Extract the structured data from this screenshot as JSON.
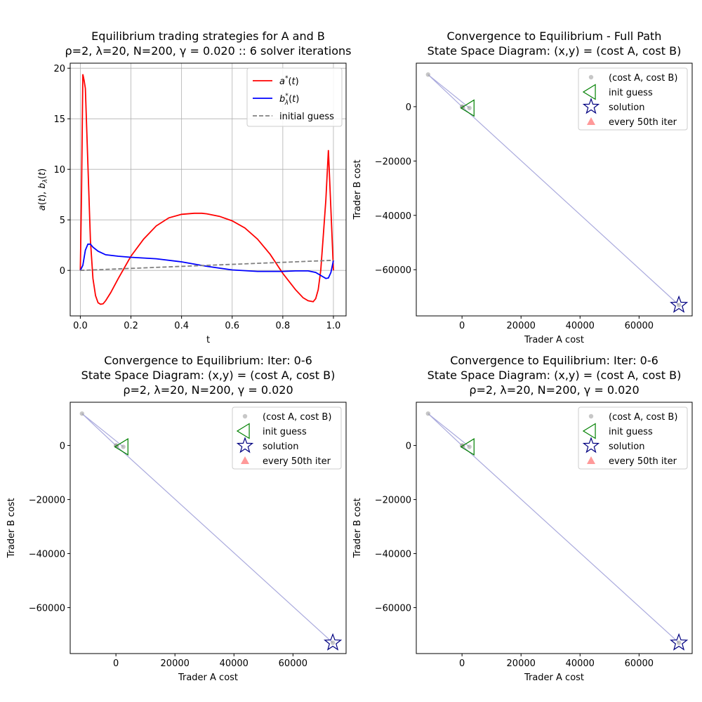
{
  "chart_data": [
    {
      "type": "line",
      "title_lines": [
        "Equilibrium trading strategies for A and B",
        "ρ=2, λ=20, N=200, γ = 0.020 :: 6 solver iterations"
      ],
      "xlabel": "t",
      "ylabel": "a(t), b_λ(t)",
      "xlim": [
        -0.04,
        1.05
      ],
      "ylim": [
        -4.5,
        20.5
      ],
      "xticks": [
        0.0,
        0.2,
        0.4,
        0.6,
        0.8,
        1.0
      ],
      "xtick_labels": [
        "0.0",
        "0.2",
        "0.4",
        "0.6",
        "0.8",
        "1.0"
      ],
      "yticks": [
        0,
        5,
        10,
        15,
        20
      ],
      "ytick_labels": [
        "0",
        "5",
        "10",
        "15",
        "20"
      ],
      "grid": true,
      "legend_position": "top-right",
      "series": [
        {
          "name": "a*(t)",
          "color": "#ff0000",
          "style": "solid",
          "x": [
            0.0,
            0.005,
            0.01,
            0.015,
            0.02,
            0.03,
            0.04,
            0.05,
            0.06,
            0.07,
            0.08,
            0.09,
            0.1,
            0.12,
            0.15,
            0.2,
            0.25,
            0.3,
            0.35,
            0.4,
            0.45,
            0.48,
            0.5,
            0.55,
            0.6,
            0.65,
            0.7,
            0.75,
            0.8,
            0.85,
            0.88,
            0.9,
            0.92,
            0.93,
            0.94,
            0.95,
            0.96,
            0.97,
            0.98,
            0.99,
            1.0
          ],
          "y": [
            0.0,
            8.0,
            19.4,
            18.8,
            18.0,
            10.5,
            3.0,
            -0.8,
            -2.5,
            -3.2,
            -3.35,
            -3.3,
            -3.0,
            -2.2,
            -0.8,
            1.4,
            3.1,
            4.4,
            5.2,
            5.55,
            5.65,
            5.65,
            5.6,
            5.35,
            4.9,
            4.2,
            3.1,
            1.6,
            -0.3,
            -1.9,
            -2.7,
            -3.0,
            -3.1,
            -2.8,
            -1.9,
            0.0,
            3.5,
            7.0,
            11.9,
            6.0,
            0.0
          ]
        },
        {
          "name": "b*_λ(t)",
          "color": "#0000ff",
          "style": "solid",
          "x": [
            0.0,
            0.01,
            0.02,
            0.03,
            0.04,
            0.05,
            0.07,
            0.1,
            0.15,
            0.2,
            0.3,
            0.4,
            0.5,
            0.6,
            0.7,
            0.8,
            0.85,
            0.9,
            0.93,
            0.95,
            0.97,
            0.98,
            0.99,
            1.0
          ],
          "y": [
            0.0,
            0.5,
            2.0,
            2.6,
            2.6,
            2.3,
            1.9,
            1.55,
            1.4,
            1.3,
            1.15,
            0.85,
            0.4,
            0.05,
            -0.1,
            -0.1,
            -0.05,
            -0.05,
            -0.2,
            -0.5,
            -0.8,
            -0.75,
            -0.2,
            1.0
          ]
        },
        {
          "name": "initial guess",
          "color": "#808080",
          "style": "dashed",
          "x": [
            0.0,
            1.0
          ],
          "y": [
            0.0,
            1.0
          ]
        }
      ]
    },
    {
      "type": "scatter",
      "title_lines": [
        "Convergence to Equilibrium - Full Path",
        "State Space Diagram: (x,y) = (cost A, cost B)"
      ],
      "xlabel": "Trader A cost",
      "ylabel": "Trader B cost",
      "xlim": [
        -15500,
        78000
      ],
      "ylim": [
        -77000,
        16000
      ],
      "xticks": [
        0,
        20000,
        40000,
        60000
      ],
      "xtick_labels": [
        "0",
        "20000",
        "40000",
        "60000"
      ],
      "yticks": [
        0,
        -20000,
        -40000,
        -60000
      ],
      "ytick_labels": [
        "0",
        "−20000",
        "−40000",
        "−60000"
      ],
      "grid": false,
      "legend_position": "top-right",
      "path": {
        "x": [
          2500,
          -11500,
          0,
          300,
          100,
          73500
        ],
        "y": [
          -500,
          11800,
          0,
          -200,
          -100,
          -73000
        ]
      },
      "init_guess": {
        "x": 2500,
        "y": -500
      },
      "solution": {
        "x": 73500,
        "y": -73000
      },
      "legend": [
        "(cost A, cost B)",
        "init guess",
        "solution",
        "every 50th iter"
      ]
    },
    {
      "type": "scatter",
      "title_lines": [
        "Convergence to Equilibrium: Iter: 0-6",
        "State Space Diagram: (x,y) = (cost A, cost B)",
        "ρ=2, λ=20, N=200, γ = 0.020"
      ],
      "xlabel": "Trader A cost",
      "ylabel": "Trader B cost",
      "xlim": [
        -15500,
        78000
      ],
      "ylim": [
        -77000,
        16000
      ],
      "xticks": [
        0,
        20000,
        40000,
        60000
      ],
      "xtick_labels": [
        "0",
        "20000",
        "40000",
        "60000"
      ],
      "yticks": [
        0,
        -20000,
        -40000,
        -60000
      ],
      "ytick_labels": [
        "0",
        "−20000",
        "−40000",
        "−60000"
      ],
      "grid": false,
      "legend_position": "top-right",
      "path": {
        "x": [
          2500,
          -11500,
          0,
          300,
          100,
          73500
        ],
        "y": [
          -500,
          11800,
          0,
          -200,
          -100,
          -73000
        ]
      },
      "init_guess": {
        "x": 2500,
        "y": -500
      },
      "solution": {
        "x": 73500,
        "y": -73000
      },
      "legend": [
        "(cost A, cost B)",
        "init guess",
        "solution",
        "every 50th iter"
      ]
    },
    {
      "type": "scatter",
      "title_lines": [
        "Convergence to Equilibrium: Iter: 0-6",
        "State Space Diagram: (x,y) = (cost A, cost B)",
        "ρ=2, λ=20, N=200, γ = 0.020"
      ],
      "xlabel": "Trader A cost",
      "ylabel": "Trader B cost",
      "xlim": [
        -15500,
        78000
      ],
      "ylim": [
        -77000,
        16000
      ],
      "xticks": [
        0,
        20000,
        40000,
        60000
      ],
      "xtick_labels": [
        "0",
        "20000",
        "40000",
        "60000"
      ],
      "yticks": [
        0,
        -20000,
        -40000,
        -60000
      ],
      "ytick_labels": [
        "0",
        "−20000",
        "−40000",
        "−60000"
      ],
      "grid": false,
      "legend_position": "top-right",
      "path": {
        "x": [
          2500,
          -11500,
          0,
          300,
          100,
          73500
        ],
        "y": [
          -500,
          11800,
          0,
          -200,
          -100,
          -73000
        ]
      },
      "init_guess": {
        "x": 2500,
        "y": -500
      },
      "solution": {
        "x": 73500,
        "y": -73000
      },
      "legend": [
        "(cost A, cost B)",
        "init guess",
        "solution",
        "every 50th iter"
      ]
    }
  ],
  "colors": {
    "a_curve": "#ff0000",
    "b_curve": "#0000ff",
    "initial_guess": "#808080",
    "path_line": "#aaaadd",
    "cost_points": "#999999",
    "init_guess_marker": "#008000",
    "solution_marker": "#000080",
    "every_50th_marker": "#ff7f7f",
    "grid": "#b0b0b0"
  }
}
